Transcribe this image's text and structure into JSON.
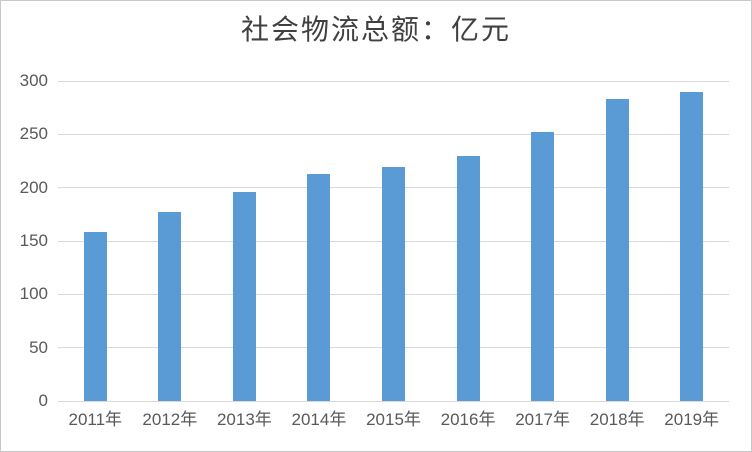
{
  "chart_data": {
    "type": "bar",
    "title": "社会物流总额：亿元",
    "categories": [
      "2011年",
      "2012年",
      "2013年",
      "2014年",
      "2015年",
      "2016年",
      "2017年",
      "2018年",
      "2019年"
    ],
    "values": [
      158,
      177,
      196,
      213,
      219,
      230,
      252,
      283,
      290
    ],
    "xlabel": "",
    "ylabel": "",
    "ylim": [
      0,
      300
    ],
    "yticks": [
      0,
      50,
      100,
      150,
      200,
      250,
      300
    ],
    "grid": "horizontal",
    "legend": "none"
  },
  "colors": {
    "bar": "#5B9BD5",
    "gridline": "#D9D9D9",
    "axis_line": "#D9D9D9",
    "title_text": "#404040",
    "tick_text": "#595959",
    "frame_border": "#C8C8C8",
    "background": "#FFFFFF"
  }
}
